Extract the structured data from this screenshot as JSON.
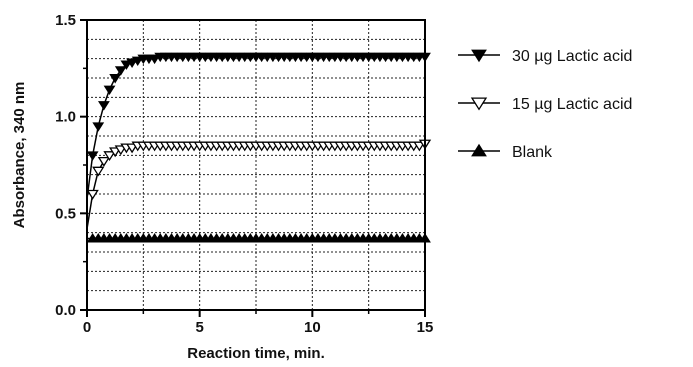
{
  "chart_data": {
    "type": "line",
    "title": "",
    "xlabel": "Reaction time, min.",
    "ylabel": "Absorbance, 340 nm",
    "xlim": [
      0,
      15
    ],
    "ylim": [
      0,
      1.5
    ],
    "x_ticks": [
      0,
      5,
      10,
      15
    ],
    "x_tick_labels": [
      "0",
      "5",
      "10",
      "15"
    ],
    "y_ticks": [
      0,
      0.5,
      1.0,
      1.5
    ],
    "y_tick_labels": [
      "0.0",
      "0.5",
      "1.0",
      "1.5"
    ],
    "grid": true,
    "legend_position": "right",
    "series": [
      {
        "name": "30 µg Lactic acid",
        "marker": "triangle-down-filled",
        "x": [
          0.25,
          0.5,
          0.75,
          1,
          1.25,
          1.5,
          1.75,
          2,
          2.25,
          2.5,
          2.75,
          3,
          3.25,
          3.5,
          3.75,
          4,
          4.25,
          4.5,
          4.75,
          5,
          5.25,
          5.5,
          5.75,
          6,
          6.25,
          6.5,
          6.75,
          7,
          7.25,
          7.5,
          7.75,
          8,
          8.25,
          8.5,
          8.75,
          9,
          9.25,
          9.5,
          9.75,
          10,
          10.25,
          10.5,
          10.75,
          11,
          11.25,
          11.5,
          11.75,
          12,
          12.25,
          12.5,
          12.75,
          13,
          13.25,
          13.5,
          13.75,
          14,
          14.25,
          14.5,
          14.75,
          15
        ],
        "y": [
          0.8,
          0.95,
          1.06,
          1.14,
          1.2,
          1.24,
          1.27,
          1.28,
          1.29,
          1.3,
          1.3,
          1.3,
          1.31,
          1.31,
          1.31,
          1.31,
          1.31,
          1.31,
          1.31,
          1.31,
          1.31,
          1.31,
          1.31,
          1.31,
          1.31,
          1.31,
          1.31,
          1.31,
          1.31,
          1.31,
          1.31,
          1.31,
          1.31,
          1.31,
          1.31,
          1.31,
          1.31,
          1.31,
          1.31,
          1.31,
          1.31,
          1.31,
          1.31,
          1.31,
          1.31,
          1.31,
          1.31,
          1.31,
          1.31,
          1.31,
          1.31,
          1.31,
          1.31,
          1.31,
          1.31,
          1.31,
          1.31,
          1.31,
          1.31,
          1.31
        ]
      },
      {
        "name": "15 µg Lactic acid",
        "marker": "triangle-down-open",
        "x": [
          0.25,
          0.5,
          0.75,
          1,
          1.25,
          1.5,
          1.75,
          2,
          2.25,
          2.5,
          2.75,
          3,
          3.25,
          3.5,
          3.75,
          4,
          4.25,
          4.5,
          4.75,
          5,
          5.25,
          5.5,
          5.75,
          6,
          6.25,
          6.5,
          6.75,
          7,
          7.25,
          7.5,
          7.75,
          8,
          8.25,
          8.5,
          8.75,
          9,
          9.25,
          9.5,
          9.75,
          10,
          10.25,
          10.5,
          10.75,
          11,
          11.25,
          11.5,
          11.75,
          12,
          12.25,
          12.5,
          12.75,
          13,
          13.25,
          13.5,
          13.75,
          14,
          14.25,
          14.5,
          14.75,
          15
        ],
        "y": [
          0.6,
          0.72,
          0.77,
          0.8,
          0.82,
          0.83,
          0.84,
          0.84,
          0.85,
          0.85,
          0.85,
          0.85,
          0.85,
          0.85,
          0.85,
          0.85,
          0.85,
          0.85,
          0.85,
          0.85,
          0.85,
          0.85,
          0.85,
          0.85,
          0.85,
          0.85,
          0.85,
          0.85,
          0.85,
          0.85,
          0.85,
          0.85,
          0.85,
          0.85,
          0.85,
          0.85,
          0.85,
          0.85,
          0.85,
          0.85,
          0.85,
          0.85,
          0.85,
          0.85,
          0.85,
          0.85,
          0.85,
          0.85,
          0.85,
          0.85,
          0.85,
          0.85,
          0.85,
          0.85,
          0.85,
          0.85,
          0.85,
          0.85,
          0.85,
          0.86
        ]
      },
      {
        "name": "Blank",
        "marker": "triangle-up-filled",
        "x": [
          0.25,
          0.5,
          0.75,
          1,
          1.25,
          1.5,
          1.75,
          2,
          2.25,
          2.5,
          2.75,
          3,
          3.25,
          3.5,
          3.75,
          4,
          4.25,
          4.5,
          4.75,
          5,
          5.25,
          5.5,
          5.75,
          6,
          6.25,
          6.5,
          6.75,
          7,
          7.25,
          7.5,
          7.75,
          8,
          8.25,
          8.5,
          8.75,
          9,
          9.25,
          9.5,
          9.75,
          10,
          10.25,
          10.5,
          10.75,
          11,
          11.25,
          11.5,
          11.75,
          12,
          12.25,
          12.5,
          12.75,
          13,
          13.25,
          13.5,
          13.75,
          14,
          14.25,
          14.5,
          14.75,
          15
        ],
        "y": [
          0.37,
          0.37,
          0.37,
          0.37,
          0.37,
          0.37,
          0.37,
          0.37,
          0.37,
          0.37,
          0.37,
          0.37,
          0.37,
          0.37,
          0.37,
          0.37,
          0.37,
          0.37,
          0.37,
          0.37,
          0.37,
          0.37,
          0.37,
          0.37,
          0.37,
          0.37,
          0.37,
          0.37,
          0.37,
          0.37,
          0.37,
          0.37,
          0.37,
          0.37,
          0.37,
          0.37,
          0.37,
          0.37,
          0.37,
          0.37,
          0.37,
          0.37,
          0.37,
          0.37,
          0.37,
          0.37,
          0.37,
          0.37,
          0.37,
          0.37,
          0.37,
          0.37,
          0.37,
          0.37,
          0.37,
          0.37,
          0.37,
          0.37,
          0.37,
          0.37
        ]
      }
    ]
  }
}
